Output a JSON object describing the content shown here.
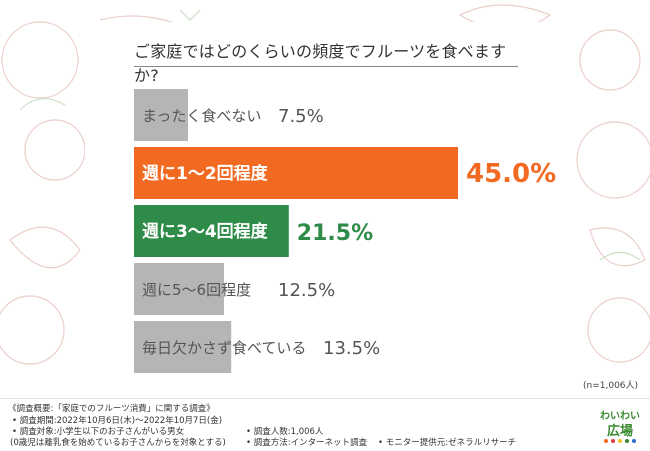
{
  "title": "ご家庭ではどのくらいの頻度でフルーツを食べますか?",
  "sample_size": "(n=1,006人)",
  "colors": {
    "gray": "#b5b5b5",
    "orange": "#f26a21",
    "green": "#2e8b48",
    "text": "#555555"
  },
  "chart_data": {
    "type": "bar",
    "orientation": "horizontal",
    "categories": [
      "まったく食べない",
      "週に1〜2回程度",
      "週に3〜4回程度",
      "週に5〜6回程度",
      "毎日欠かさず食べている"
    ],
    "values": [
      7.5,
      45.0,
      21.5,
      12.5,
      13.5
    ],
    "value_labels": [
      "7.5%",
      "45.0%",
      "21.5%",
      "12.5%",
      "13.5%"
    ],
    "highlight": [
      "none",
      "orange",
      "green",
      "none",
      "none"
    ],
    "xlim": [
      0,
      50
    ]
  },
  "footer": {
    "title": "《調査概要:「家庭でのフルーツ消費」に関する調査》",
    "period": "• 調査期間:2022年10月6日(木)〜2022年10月7日(金)",
    "target": "• 調査対象:小学生以下のお子さんがいる男女",
    "target_note": "(0歳児は離乳食を始めているお子さんからを対象とする)",
    "count": "• 調査人数:1,006人",
    "method": "• 調査方法:インターネット調査",
    "provider": "• モニター提供元:ゼネラルリサーチ"
  },
  "logo": {
    "line1": "わいわい",
    "line2": "広場"
  }
}
